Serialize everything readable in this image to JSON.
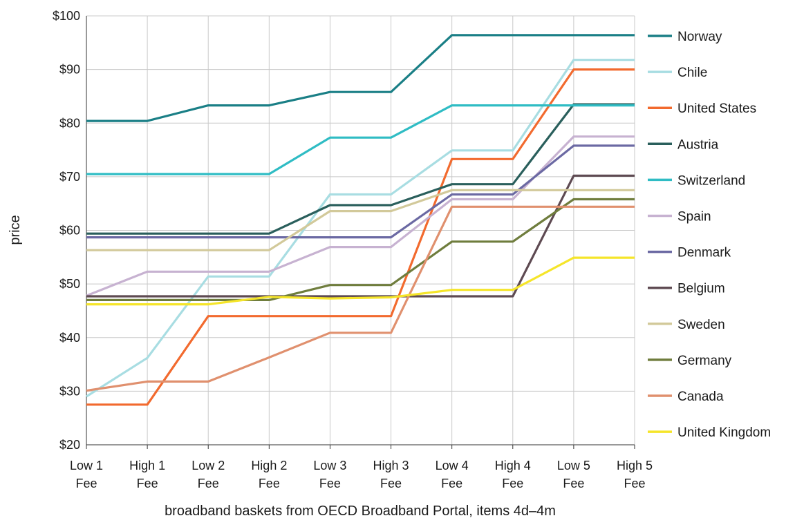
{
  "chart_data": {
    "type": "line",
    "xlabel": "broadband baskets from OECD Broadband Portal, items 4d–4m",
    "ylabel": "price",
    "ylim": [
      20,
      100
    ],
    "yticks": [
      {
        "value": 20,
        "label": "$20"
      },
      {
        "value": 30,
        "label": "$30"
      },
      {
        "value": 40,
        "label": "$40"
      },
      {
        "value": 50,
        "label": "$50"
      },
      {
        "value": 60,
        "label": "$60"
      },
      {
        "value": 70,
        "label": "$70"
      },
      {
        "value": 80,
        "label": "$80"
      },
      {
        "value": 90,
        "label": "$90"
      },
      {
        "value": 100,
        "label": "$100"
      }
    ],
    "categories": [
      [
        "Low 1",
        "Fee"
      ],
      [
        "High 1",
        "Fee"
      ],
      [
        "Low 2",
        "Fee"
      ],
      [
        "High 2",
        "Fee"
      ],
      [
        "Low 3",
        "Fee"
      ],
      [
        "High 3",
        "Fee"
      ],
      [
        "Low 4",
        "Fee"
      ],
      [
        "High 4",
        "Fee"
      ],
      [
        "Low 5",
        "Fee"
      ],
      [
        "High 5",
        "Fee"
      ]
    ],
    "grid": true,
    "legend_position": "right",
    "series": [
      {
        "name": "Norway",
        "color": "#1a7f86",
        "values": [
          80.4,
          80.4,
          83.3,
          83.3,
          85.8,
          85.8,
          96.4,
          96.4,
          96.4,
          96.4
        ]
      },
      {
        "name": "Chile",
        "color": "#a8dde2",
        "values": [
          29.0,
          36.2,
          51.4,
          51.4,
          66.7,
          66.7,
          74.9,
          74.9,
          91.8,
          91.8
        ]
      },
      {
        "name": "United States",
        "color": "#f26a2e",
        "values": [
          27.5,
          27.5,
          44.0,
          44.0,
          44.0,
          44.0,
          73.3,
          73.3,
          90.0,
          90.0
        ]
      },
      {
        "name": "Austria",
        "color": "#2a5f5c",
        "values": [
          59.4,
          59.4,
          59.4,
          59.4,
          64.7,
          64.7,
          68.6,
          68.6,
          83.5,
          83.5
        ]
      },
      {
        "name": "Switzerland",
        "color": "#2fbcc4",
        "values": [
          70.5,
          70.5,
          70.5,
          70.5,
          77.3,
          77.3,
          83.3,
          83.3,
          83.3,
          83.3
        ]
      },
      {
        "name": "Spain",
        "color": "#c7b2d1",
        "values": [
          47.8,
          52.3,
          52.3,
          52.3,
          56.9,
          56.9,
          65.8,
          65.8,
          77.5,
          77.5
        ]
      },
      {
        "name": "Denmark",
        "color": "#6b69a3",
        "values": [
          58.7,
          58.7,
          58.7,
          58.7,
          58.7,
          58.7,
          66.7,
          66.7,
          75.8,
          75.8
        ]
      },
      {
        "name": "Belgium",
        "color": "#5e4a52",
        "values": [
          47.7,
          47.7,
          47.7,
          47.7,
          47.7,
          47.7,
          47.7,
          47.7,
          70.2,
          70.2
        ]
      },
      {
        "name": "Sweden",
        "color": "#d2c99a",
        "values": [
          56.3,
          56.3,
          56.3,
          56.3,
          63.6,
          63.6,
          67.5,
          67.5,
          67.5,
          67.5
        ]
      },
      {
        "name": "Germany",
        "color": "#6f7d3d",
        "values": [
          47.0,
          47.0,
          47.0,
          47.0,
          49.8,
          49.8,
          57.9,
          57.9,
          65.8,
          65.8
        ]
      },
      {
        "name": "Canada",
        "color": "#e0906e",
        "values": [
          30.1,
          31.8,
          31.8,
          36.3,
          40.9,
          40.9,
          64.4,
          64.4,
          64.4,
          64.4
        ]
      },
      {
        "name": "United Kingdom",
        "color": "#f5e52a",
        "values": [
          46.2,
          46.2,
          46.2,
          47.6,
          47.3,
          47.5,
          48.9,
          48.9,
          54.9,
          54.9
        ]
      }
    ]
  }
}
